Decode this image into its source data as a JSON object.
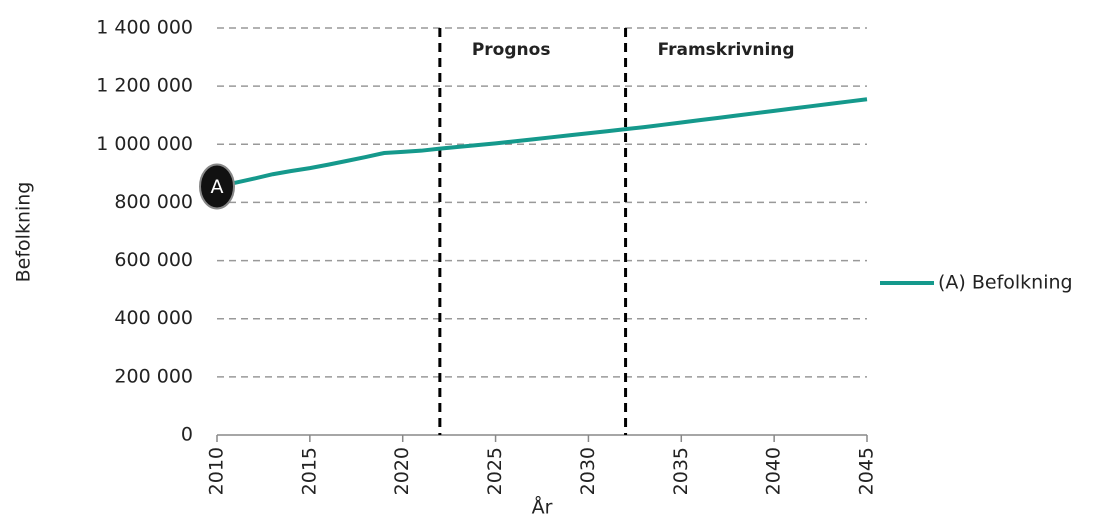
{
  "chart_data": {
    "type": "line",
    "x_label": "År",
    "y_label": "Befolkning",
    "x": [
      2010,
      2011,
      2012,
      2013,
      2014,
      2015,
      2016,
      2017,
      2018,
      2019,
      2020,
      2021,
      2022,
      2023,
      2024,
      2025,
      2026,
      2027,
      2028,
      2029,
      2030,
      2031,
      2032,
      2033,
      2034,
      2035,
      2036,
      2037,
      2038,
      2039,
      2040,
      2041,
      2042,
      2043,
      2044,
      2045
    ],
    "series": [
      {
        "name": "(A) Befolkning",
        "color": "#15998c",
        "point_label": "A",
        "values": [
          855000,
          868000,
          882000,
          897000,
          908000,
          918000,
          930000,
          943000,
          956000,
          970000,
          974000,
          978000,
          985000,
          991000,
          997000,
          1003000,
          1010000,
          1017000,
          1024000,
          1031000,
          1038000,
          1045000,
          1052000,
          1059000,
          1067000,
          1075000,
          1083000,
          1091000,
          1099000,
          1107000,
          1115000,
          1123000,
          1131000,
          1139000,
          1147000,
          1155000
        ]
      }
    ],
    "xlim": [
      2010,
      2045
    ],
    "xticks": [
      2010,
      2015,
      2020,
      2025,
      2030,
      2035,
      2040,
      2045
    ],
    "ylim": [
      0,
      1400000
    ],
    "yticks": [
      0,
      {
        "value": 200000,
        "label": "200 000"
      },
      {
        "value": 400000,
        "label": "400 000"
      },
      {
        "value": 600000,
        "label": "600 000"
      },
      {
        "value": 800000,
        "label": "800 000"
      },
      {
        "value": 1000000,
        "label": "1 000 000"
      },
      {
        "value": 1200000,
        "label": "1 200 000"
      },
      {
        "value": 1400000,
        "label": "1 400 000"
      }
    ],
    "grid": true,
    "legend": "right",
    "vlines": [
      {
        "x": 2022,
        "label": "Prognos"
      },
      {
        "x": 2032,
        "label": "Framskrivning"
      }
    ]
  }
}
